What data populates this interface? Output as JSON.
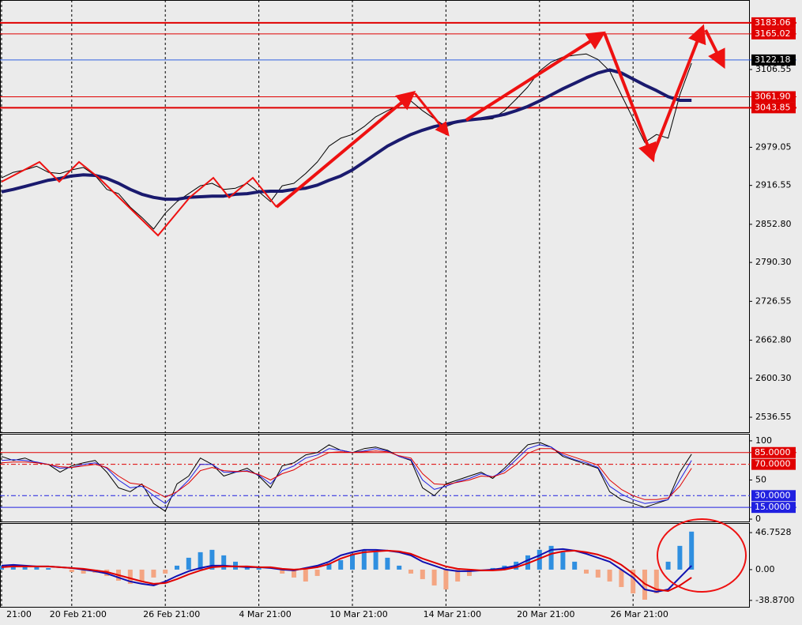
{
  "chart_data": [
    {
      "type": "line",
      "ylim": [
        2512,
        3220.5
      ],
      "yticks": [
        3106.55,
        2979.05,
        2916.55,
        {
          "value": 2852.8,
          "label": "2852.80"
        },
        {
          "value": 2790.3,
          "label": "2790.30"
        },
        2726.55,
        {
          "value": 2662.8,
          "label": "2662.80"
        },
        {
          "value": 2600.3,
          "label": "2600.30"
        },
        2536.55
      ],
      "levels": [
        {
          "value": 3183.06,
          "label": "3183.06",
          "color": "#e00000",
          "box_color": "#e00000",
          "width": 2
        },
        {
          "value": 3165.02,
          "label": "3165.02",
          "color": "#e00000",
          "box_color": "#e00000",
          "width": 1
        },
        {
          "value": 3122.18,
          "label": "3122.18",
          "color": "#3060e0",
          "box_color": "#000000",
          "width": 1
        },
        {
          "value": 3061.9,
          "label": "3061.90",
          "color": "#e00000",
          "box_color": "#e00000",
          "width": 1
        },
        {
          "value": 3043.85,
          "label": "3043.85",
          "color": "#e00000",
          "box_color": "#e00000",
          "width": 2
        }
      ],
      "series": [
        {
          "color": "#000000",
          "width": 1,
          "values": [
            2929,
            2938,
            2942,
            2948,
            2938,
            2936,
            2942,
            2946,
            2933,
            2910,
            2903,
            2881,
            2864,
            2845,
            2871,
            2890,
            2903,
            2916,
            2920,
            2910,
            2912,
            2920,
            2906,
            2890,
            2916,
            2920,
            2936,
            2955,
            2981,
            2994,
            3000,
            3013,
            3029,
            3039,
            3048,
            3055,
            3039,
            3026,
            3013,
            3020,
            3026,
            3024,
            3026,
            3039,
            3058,
            3078,
            3104,
            3119,
            3127,
            3130,
            3132,
            3123,
            3104,
            3065,
            3026,
            2987,
            3000,
            2994,
            3065,
            3117
          ]
        },
        {
          "color": "#1a1a6e",
          "width": 4,
          "values": [
            2906,
            2910,
            2915,
            2920,
            2925,
            2928,
            2932,
            2934,
            2933,
            2928,
            2920,
            2910,
            2902,
            2897,
            2894,
            2894,
            2897,
            2898,
            2899,
            2899,
            2902,
            2903,
            2906,
            2907,
            2907,
            2910,
            2912,
            2917,
            2925,
            2932,
            2942,
            2955,
            2968,
            2981,
            2991,
            3000,
            3007,
            3013,
            3017,
            3021,
            3024,
            3026,
            3029,
            3033,
            3039,
            3046,
            3055,
            3065,
            3075,
            3084,
            3093,
            3101,
            3106,
            3101,
            3091,
            3081,
            3072,
            3062,
            3056,
            3056
          ]
        }
      ]
    },
    {
      "type": "line",
      "ylim": [
        -3,
        109
      ],
      "yticks": [
        100,
        50,
        0
      ],
      "levels": [
        {
          "value": 85,
          "label": "85.0000",
          "color": "#e00000",
          "box_color": "#e00000",
          "width": 1
        },
        {
          "value": 70,
          "label": "70.0000",
          "color": "#e00000",
          "box_color": "#e00000",
          "width": 1,
          "dashed": true
        },
        {
          "value": 30,
          "label": "30.0000",
          "color": "#2020e0",
          "box_color": "#2020e0",
          "width": 1,
          "dashed": true
        },
        {
          "value": 15,
          "label": "15.0000",
          "color": "#2020e0",
          "box_color": "#2020e0",
          "width": 1
        }
      ],
      "series": [
        {
          "color": "#000000",
          "width": 1,
          "values": [
            80,
            75,
            78,
            72,
            70,
            60,
            68,
            72,
            75,
            60,
            40,
            35,
            45,
            20,
            10,
            45,
            55,
            78,
            70,
            55,
            60,
            65,
            55,
            40,
            68,
            72,
            82,
            85,
            95,
            88,
            85,
            90,
            92,
            88,
            80,
            75,
            40,
            30,
            45,
            50,
            55,
            60,
            52,
            65,
            80,
            95,
            98,
            92,
            80,
            75,
            70,
            65,
            35,
            25,
            20,
            15,
            20,
            25,
            60,
            83
          ]
        },
        {
          "color": "#2020e0",
          "width": 1,
          "values": [
            75,
            76,
            75,
            73,
            70,
            65,
            66,
            70,
            72,
            65,
            50,
            40,
            42,
            30,
            20,
            35,
            50,
            70,
            70,
            60,
            60,
            62,
            56,
            45,
            62,
            68,
            78,
            82,
            90,
            88,
            85,
            87,
            90,
            87,
            80,
            76,
            50,
            38,
            42,
            48,
            52,
            58,
            54,
            62,
            76,
            90,
            95,
            92,
            82,
            76,
            72,
            66,
            42,
            32,
            25,
            20,
            22,
            25,
            50,
            75
          ]
        },
        {
          "color": "#e00000",
          "width": 1,
          "values": [
            72,
            73,
            73,
            72,
            70,
            67,
            66,
            68,
            70,
            66,
            55,
            46,
            44,
            36,
            28,
            35,
            46,
            62,
            66,
            62,
            61,
            61,
            57,
            50,
            58,
            63,
            72,
            78,
            85,
            86,
            85,
            86,
            87,
            86,
            81,
            78,
            58,
            45,
            44,
            47,
            50,
            55,
            54,
            59,
            70,
            84,
            90,
            90,
            84,
            79,
            74,
            69,
            50,
            38,
            30,
            25,
            25,
            27,
            42,
            65
          ]
        }
      ]
    },
    {
      "type": "bar",
      "ylim": [
        -47,
        58.8
      ],
      "yticks": [
        46.7528,
        {
          "value": 0,
          "label": "0.00"
        },
        {
          "value": -38.87,
          "label": "-38.8700"
        }
      ],
      "categories": [
        "21:00",
        null,
        null,
        null,
        null,
        null,
        "20 Feb 21:00",
        null,
        null,
        null,
        null,
        null,
        null,
        null,
        "26 Feb 21:00",
        null,
        null,
        null,
        null,
        null,
        null,
        null,
        "4 Mar 21:00",
        null,
        null,
        null,
        null,
        null,
        null,
        null,
        "10 Mar 21:00",
        null,
        null,
        null,
        null,
        null,
        null,
        null,
        "14 Mar 21:00",
        null,
        null,
        null,
        null,
        null,
        null,
        null,
        "20 Mar 21:00",
        null,
        null,
        null,
        null,
        null,
        null,
        null,
        "26 Mar 21:00",
        null,
        null,
        null,
        null,
        null
      ],
      "series": [
        {
          "kind": "bar",
          "color": "#2f8fe0",
          "negative_color": "#f4a582",
          "values": [
            5,
            6,
            4,
            3,
            2,
            0,
            -3,
            -5,
            -4,
            -8,
            -14,
            -18,
            -15,
            -10,
            -5,
            5,
            15,
            22,
            25,
            18,
            10,
            5,
            2,
            0,
            -5,
            -10,
            -15,
            -8,
            8,
            12,
            20,
            25,
            22,
            15,
            5,
            -5,
            -12,
            -20,
            -25,
            -15,
            -8,
            -2,
            2,
            5,
            10,
            18,
            25,
            30,
            22,
            10,
            -5,
            -10,
            -15,
            -22,
            -30,
            -38,
            -30,
            10,
            30,
            48
          ]
        },
        {
          "kind": "line",
          "color": "#1010b0",
          "width": 2,
          "values": [
            5,
            6,
            5,
            4,
            4,
            3,
            2,
            0,
            -2,
            -5,
            -10,
            -15,
            -18,
            -20,
            -15,
            -8,
            -2,
            2,
            5,
            5,
            4,
            3,
            3,
            2,
            0,
            -1,
            2,
            5,
            10,
            18,
            22,
            25,
            25,
            24,
            22,
            18,
            10,
            5,
            0,
            -2,
            -2,
            -1,
            0,
            2,
            5,
            12,
            18,
            25,
            26,
            24,
            20,
            15,
            10,
            0,
            -10,
            -25,
            -28,
            -25,
            -10,
            5
          ]
        },
        {
          "kind": "line",
          "color": "#e00000",
          "width": 2,
          "values": [
            3,
            4,
            4,
            4,
            4,
            3,
            2,
            1,
            -1,
            -3,
            -7,
            -11,
            -15,
            -18,
            -17,
            -12,
            -6,
            -1,
            3,
            4,
            4,
            4,
            3,
            3,
            1,
            0,
            1,
            3,
            7,
            14,
            19,
            22,
            23,
            24,
            23,
            20,
            14,
            9,
            4,
            1,
            0,
            -1,
            -1,
            0,
            3,
            8,
            14,
            20,
            23,
            24,
            22,
            19,
            14,
            6,
            -5,
            -18,
            -25,
            -27,
            -20,
            -10
          ]
        }
      ]
    }
  ]
}
